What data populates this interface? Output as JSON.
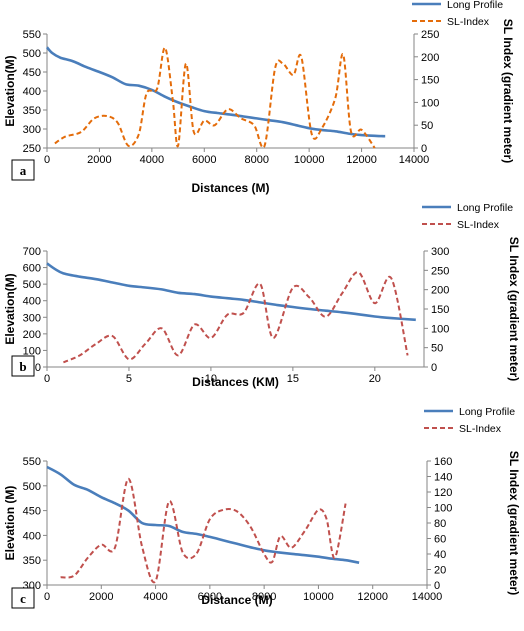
{
  "chart_data": [
    {
      "type": "line",
      "panel_label": "a",
      "xlabel": "Distances (M)",
      "ylabel": "Elevation(M)",
      "y2label": "SL Index (gradient meter)",
      "xlim": [
        0,
        14000
      ],
      "ylim": [
        250,
        550
      ],
      "y2lim": [
        0,
        250
      ],
      "xticks": [
        "0",
        "2000",
        "4000",
        "6000",
        "8000",
        "10000",
        "12000",
        "14000"
      ],
      "yticks": [
        "250",
        "300",
        "350",
        "400",
        "450",
        "500",
        "550"
      ],
      "y2ticks": [
        "0",
        "50",
        "100",
        "150",
        "200",
        "250"
      ],
      "legend_position": "top-right",
      "series": [
        {
          "name": "Long Profile",
          "axis": "left",
          "style": "solid",
          "color": "#4a7ebb",
          "x": [
            0,
            200,
            500,
            1000,
            1500,
            2000,
            2500,
            3000,
            3500,
            4000,
            4500,
            5000,
            5500,
            6000,
            6500,
            7000,
            7500,
            8000,
            8500,
            9000,
            9500,
            10000,
            10500,
            11000,
            11500,
            12000,
            12500,
            12900
          ],
          "y": [
            515,
            500,
            488,
            478,
            463,
            450,
            436,
            418,
            414,
            403,
            385,
            370,
            358,
            347,
            342,
            338,
            333,
            328,
            323,
            318,
            310,
            302,
            297,
            294,
            288,
            284,
            282,
            281
          ]
        },
        {
          "name": "SL-Index",
          "axis": "right",
          "style": "dashed",
          "color": "#e46c0a",
          "x": [
            300,
            700,
            1300,
            1800,
            2300,
            2700,
            3100,
            3500,
            3800,
            4200,
            4500,
            4800,
            5000,
            5300,
            5600,
            6000,
            6400,
            6900,
            7400,
            7900,
            8300,
            8700,
            9000,
            9400,
            9700,
            10100,
            10500,
            11000,
            11300,
            11600,
            12000,
            12500
          ],
          "y": [
            10,
            25,
            35,
            65,
            70,
            55,
            5,
            30,
            120,
            130,
            220,
            105,
            5,
            185,
            35,
            60,
            50,
            85,
            65,
            50,
            5,
            175,
            185,
            160,
            200,
            30,
            45,
            110,
            205,
            35,
            40,
            0
          ]
        }
      ]
    },
    {
      "type": "line",
      "panel_label": "b",
      "xlabel": "Distances (KM)",
      "ylabel": "Elevation(M)",
      "y2label": "SL Index (gradient meter)",
      "xlim": [
        0,
        23
      ],
      "ylim": [
        0,
        700
      ],
      "y2lim": [
        0,
        300
      ],
      "xticks": [
        "0",
        "5",
        "10",
        "15",
        "20"
      ],
      "yticks": [
        "0",
        "100",
        "200",
        "300",
        "400",
        "500",
        "600",
        "700"
      ],
      "y2ticks": [
        "0",
        "50",
        "100",
        "150",
        "200",
        "250",
        "300"
      ],
      "legend_position": "top-right",
      "series": [
        {
          "name": "Long Profile",
          "axis": "left",
          "style": "solid",
          "color": "#4a7ebb",
          "x": [
            0,
            0.5,
            1,
            2,
            3,
            4,
            5,
            6,
            7,
            8,
            9,
            10,
            11,
            12,
            13,
            14,
            15,
            16,
            17,
            18,
            19,
            20,
            21,
            22.5
          ],
          "y": [
            625,
            590,
            565,
            545,
            530,
            510,
            490,
            480,
            468,
            448,
            440,
            425,
            415,
            405,
            390,
            375,
            362,
            350,
            340,
            330,
            318,
            305,
            295,
            285
          ]
        },
        {
          "name": "SL-Index",
          "axis": "right",
          "style": "dashed",
          "color": "#c0504d",
          "x": [
            1,
            2,
            3,
            4,
            5,
            6,
            7,
            8,
            9,
            10,
            11,
            12,
            13,
            13.8,
            15,
            16,
            17,
            18,
            19,
            20,
            21,
            22
          ],
          "y": [
            12,
            30,
            60,
            80,
            20,
            60,
            100,
            30,
            110,
            75,
            135,
            140,
            215,
            75,
            205,
            180,
            130,
            190,
            245,
            165,
            230,
            30
          ]
        }
      ]
    },
    {
      "type": "line",
      "panel_label": "c",
      "xlabel": "Distance (M)",
      "ylabel": "Elevation (M)",
      "y2label": "SL Index (gradient meter)",
      "xlim": [
        0,
        14000
      ],
      "ylim": [
        300,
        550
      ],
      "y2lim": [
        0,
        160
      ],
      "xticks": [
        "0",
        "2000",
        "4000",
        "6000",
        "8000",
        "10000",
        "12000",
        "14000"
      ],
      "yticks": [
        "300",
        "350",
        "400",
        "450",
        "500",
        "550"
      ],
      "y2ticks": [
        "0",
        "20",
        "40",
        "60",
        "80",
        "100",
        "120",
        "140",
        "160"
      ],
      "legend_position": "top-right",
      "series": [
        {
          "name": "Long Profile",
          "axis": "left",
          "style": "solid",
          "color": "#4a7ebb",
          "x": [
            0,
            500,
            1000,
            1500,
            2000,
            2500,
            3000,
            3500,
            4000,
            4500,
            5000,
            5500,
            6000,
            6500,
            7000,
            7500,
            8000,
            8500,
            9000,
            9500,
            10000,
            10500,
            11000,
            11500
          ],
          "y": [
            538,
            523,
            502,
            492,
            477,
            465,
            450,
            425,
            421,
            419,
            407,
            403,
            397,
            390,
            383,
            376,
            370,
            366,
            363,
            360,
            357,
            353,
            350,
            345
          ]
        },
        {
          "name": "SL-Index",
          "axis": "right",
          "style": "dashed",
          "color": "#c0504d",
          "x": [
            500,
            1000,
            1500,
            2000,
            2500,
            3000,
            3500,
            4000,
            4500,
            5000,
            5500,
            6000,
            6500,
            7000,
            7500,
            8000,
            8300,
            8600,
            9000,
            9500,
            10000,
            10300,
            10600,
            11000
          ],
          "y": [
            10,
            12,
            35,
            52,
            48,
            137,
            50,
            5,
            108,
            42,
            40,
            85,
            97,
            95,
            75,
            40,
            30,
            63,
            48,
            70,
            97,
            85,
            35,
            105
          ]
        }
      ]
    }
  ]
}
